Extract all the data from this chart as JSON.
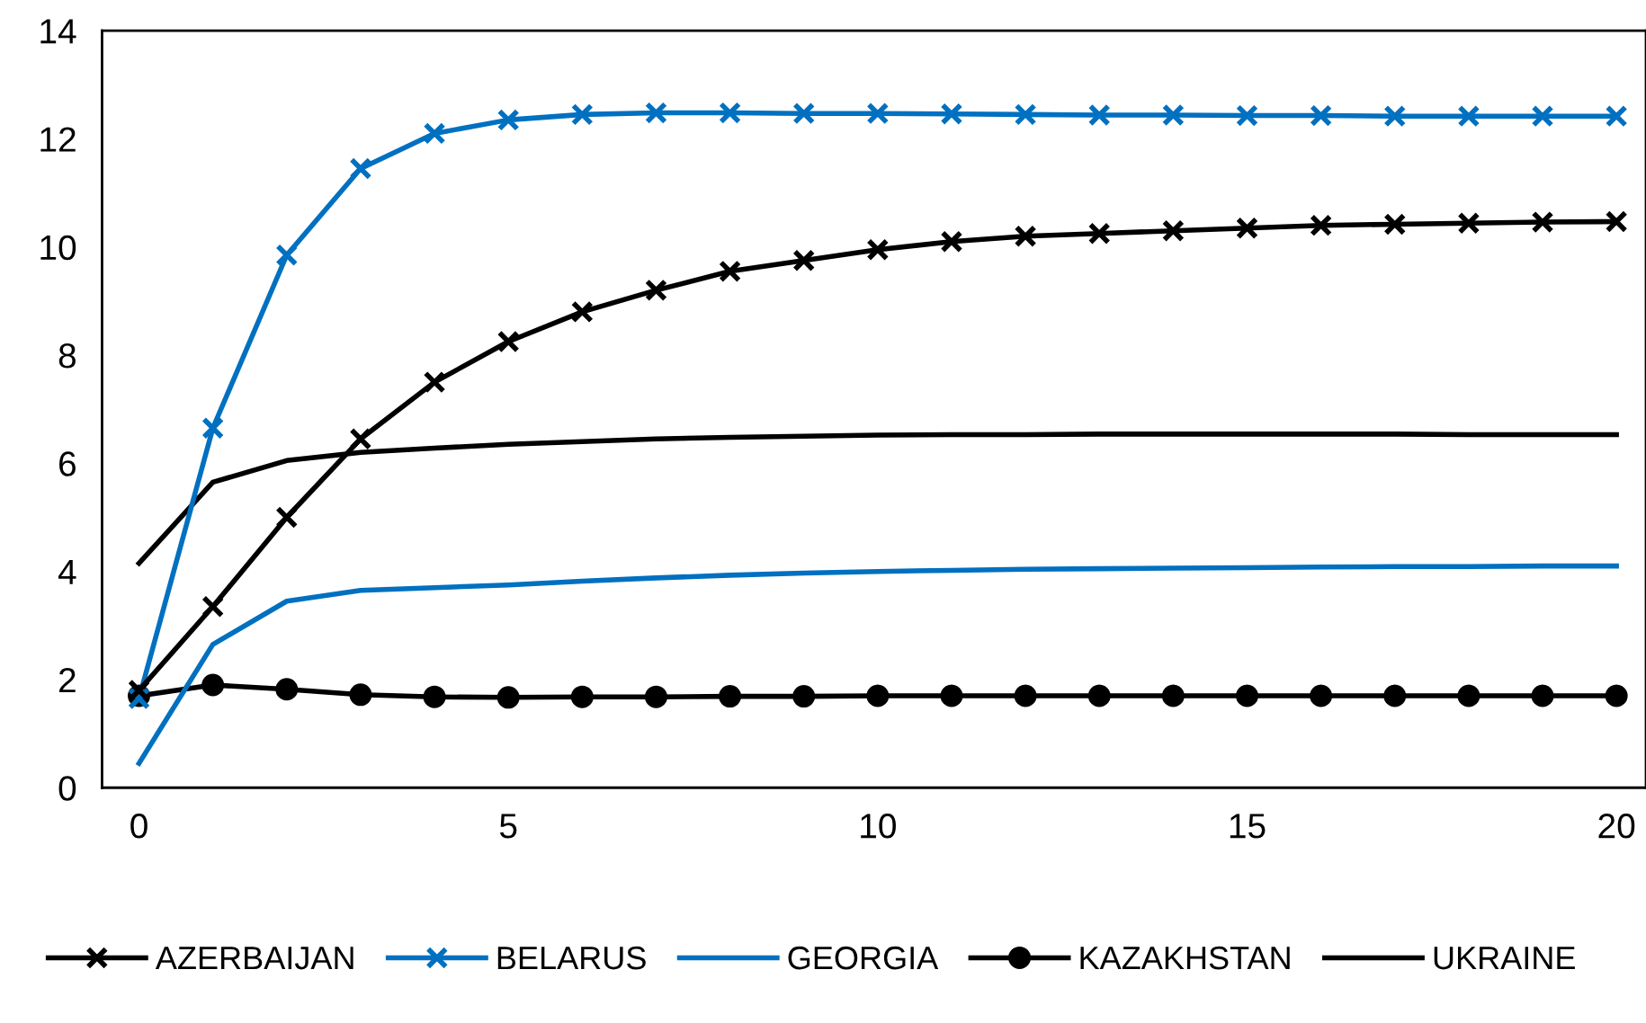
{
  "chart_data": {
    "type": "line",
    "x": [
      0,
      1,
      2,
      3,
      4,
      5,
      6,
      7,
      8,
      9,
      10,
      11,
      12,
      13,
      14,
      15,
      16,
      17,
      18,
      19,
      20
    ],
    "xlim": [
      -0.5,
      20.4
    ],
    "xticks": [
      0,
      5,
      10,
      15,
      20
    ],
    "ylim": [
      0,
      14
    ],
    "yticks": [
      0,
      2,
      4,
      6,
      8,
      10,
      12,
      14
    ],
    "grid": false,
    "legend": "bottom",
    "series": [
      {
        "name": "AZERBAIJAN",
        "color": "#000000",
        "marker": "cross",
        "values": [
          1.8,
          3.35,
          5.0,
          6.45,
          7.5,
          8.25,
          8.8,
          9.2,
          9.55,
          9.75,
          9.95,
          10.1,
          10.2,
          10.25,
          10.3,
          10.35,
          10.4,
          10.42,
          10.44,
          10.46,
          10.47
        ]
      },
      {
        "name": "BELARUS",
        "color": "#0070c0",
        "marker": "cross",
        "values": [
          1.65,
          6.65,
          9.85,
          11.45,
          12.1,
          12.35,
          12.45,
          12.48,
          12.48,
          12.47,
          12.47,
          12.46,
          12.45,
          12.44,
          12.44,
          12.43,
          12.43,
          12.42,
          12.42,
          12.42,
          12.42
        ]
      },
      {
        "name": "GEORGIA",
        "color": "#0070c0",
        "marker": "none",
        "values": [
          0.45,
          2.65,
          3.45,
          3.65,
          3.7,
          3.75,
          3.82,
          3.88,
          3.93,
          3.97,
          4.0,
          4.02,
          4.04,
          4.05,
          4.06,
          4.07,
          4.08,
          4.09,
          4.09,
          4.1,
          4.1
        ]
      },
      {
        "name": "KAZAKHSTAN",
        "color": "#000000",
        "marker": "circle",
        "values": [
          1.7,
          1.9,
          1.82,
          1.72,
          1.68,
          1.67,
          1.68,
          1.68,
          1.69,
          1.69,
          1.7,
          1.7,
          1.7,
          1.7,
          1.7,
          1.7,
          1.7,
          1.7,
          1.7,
          1.7,
          1.7
        ]
      },
      {
        "name": "UKRAINE",
        "color": "#000000",
        "marker": "none",
        "values": [
          4.15,
          5.65,
          6.05,
          6.2,
          6.28,
          6.35,
          6.4,
          6.45,
          6.48,
          6.5,
          6.52,
          6.53,
          6.53,
          6.54,
          6.54,
          6.54,
          6.54,
          6.54,
          6.53,
          6.53,
          6.53
        ]
      }
    ]
  }
}
